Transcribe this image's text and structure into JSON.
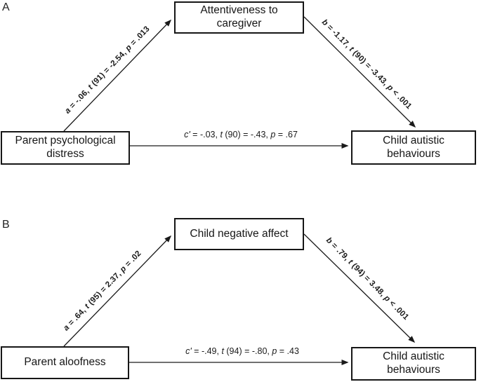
{
  "figure": {
    "colors": {
      "ink": "#1a1a1a",
      "background": "#ffffff"
    },
    "panels": [
      {
        "label": "A",
        "mediator": "Attentiveness to caregiver",
        "predictor": "Parent psychological distress",
        "outcome": "Child autistic behaviours",
        "path_a": {
          "text": "a = -.06, t (91) = -2.54, p = .013",
          "segments": [
            {
              "t": "a",
              "i": true
            },
            {
              "t": " = -.06, ",
              "i": false
            },
            {
              "t": "t",
              "i": true
            },
            {
              "t": " (91) = -2.54, ",
              "i": false
            },
            {
              "t": "p",
              "i": true
            },
            {
              "t": " = .013",
              "i": false
            }
          ]
        },
        "path_b": {
          "text": "b = -1.17, t (90) = -3.43, p < .001",
          "segments": [
            {
              "t": "b",
              "i": true
            },
            {
              "t": " = -1.17, ",
              "i": false
            },
            {
              "t": "t",
              "i": true
            },
            {
              "t": " (90) = -3.43, ",
              "i": false
            },
            {
              "t": "p",
              "i": true
            },
            {
              "t": " < .001",
              "i": false
            }
          ]
        },
        "path_c": {
          "text": "c' = -.03, t (90) = -.43, p = .67",
          "segments": [
            {
              "t": "c'",
              "i": true
            },
            {
              "t": " = -.03, ",
              "i": false
            },
            {
              "t": "t",
              "i": true
            },
            {
              "t": " (90) = -.43, ",
              "i": false
            },
            {
              "t": "p",
              "i": true
            },
            {
              "t": " = .67",
              "i": false
            }
          ]
        }
      },
      {
        "label": "B",
        "mediator": "Child negative affect",
        "predictor": "Parent aloofness",
        "outcome": "Child autistic behaviours",
        "path_a": {
          "text": "a = .64, t (95) = 2.37, p = .02",
          "segments": [
            {
              "t": "a",
              "i": true
            },
            {
              "t": " = .64, ",
              "i": false
            },
            {
              "t": "t",
              "i": true
            },
            {
              "t": " (95) = 2.37, ",
              "i": false
            },
            {
              "t": "p",
              "i": true
            },
            {
              "t": " = .02",
              "i": false
            }
          ]
        },
        "path_b": {
          "text": "b = .79, t (94) = 3.48, p < .001",
          "segments": [
            {
              "t": "b",
              "i": true
            },
            {
              "t": " = .79, ",
              "i": false
            },
            {
              "t": "t",
              "i": true
            },
            {
              "t": " (94) = 3.48, ",
              "i": false
            },
            {
              "t": "p",
              "i": true
            },
            {
              "t": " < .001",
              "i": false
            }
          ]
        },
        "path_c": {
          "text": "c' = -.49, t (94) = -.80, p = .43",
          "segments": [
            {
              "t": "c'",
              "i": true
            },
            {
              "t": " = -.49, ",
              "i": false
            },
            {
              "t": "t",
              "i": true
            },
            {
              "t": " (94) = -.80, ",
              "i": false
            },
            {
              "t": "p",
              "i": true
            },
            {
              "t": " = .43",
              "i": false
            }
          ]
        }
      }
    ]
  }
}
